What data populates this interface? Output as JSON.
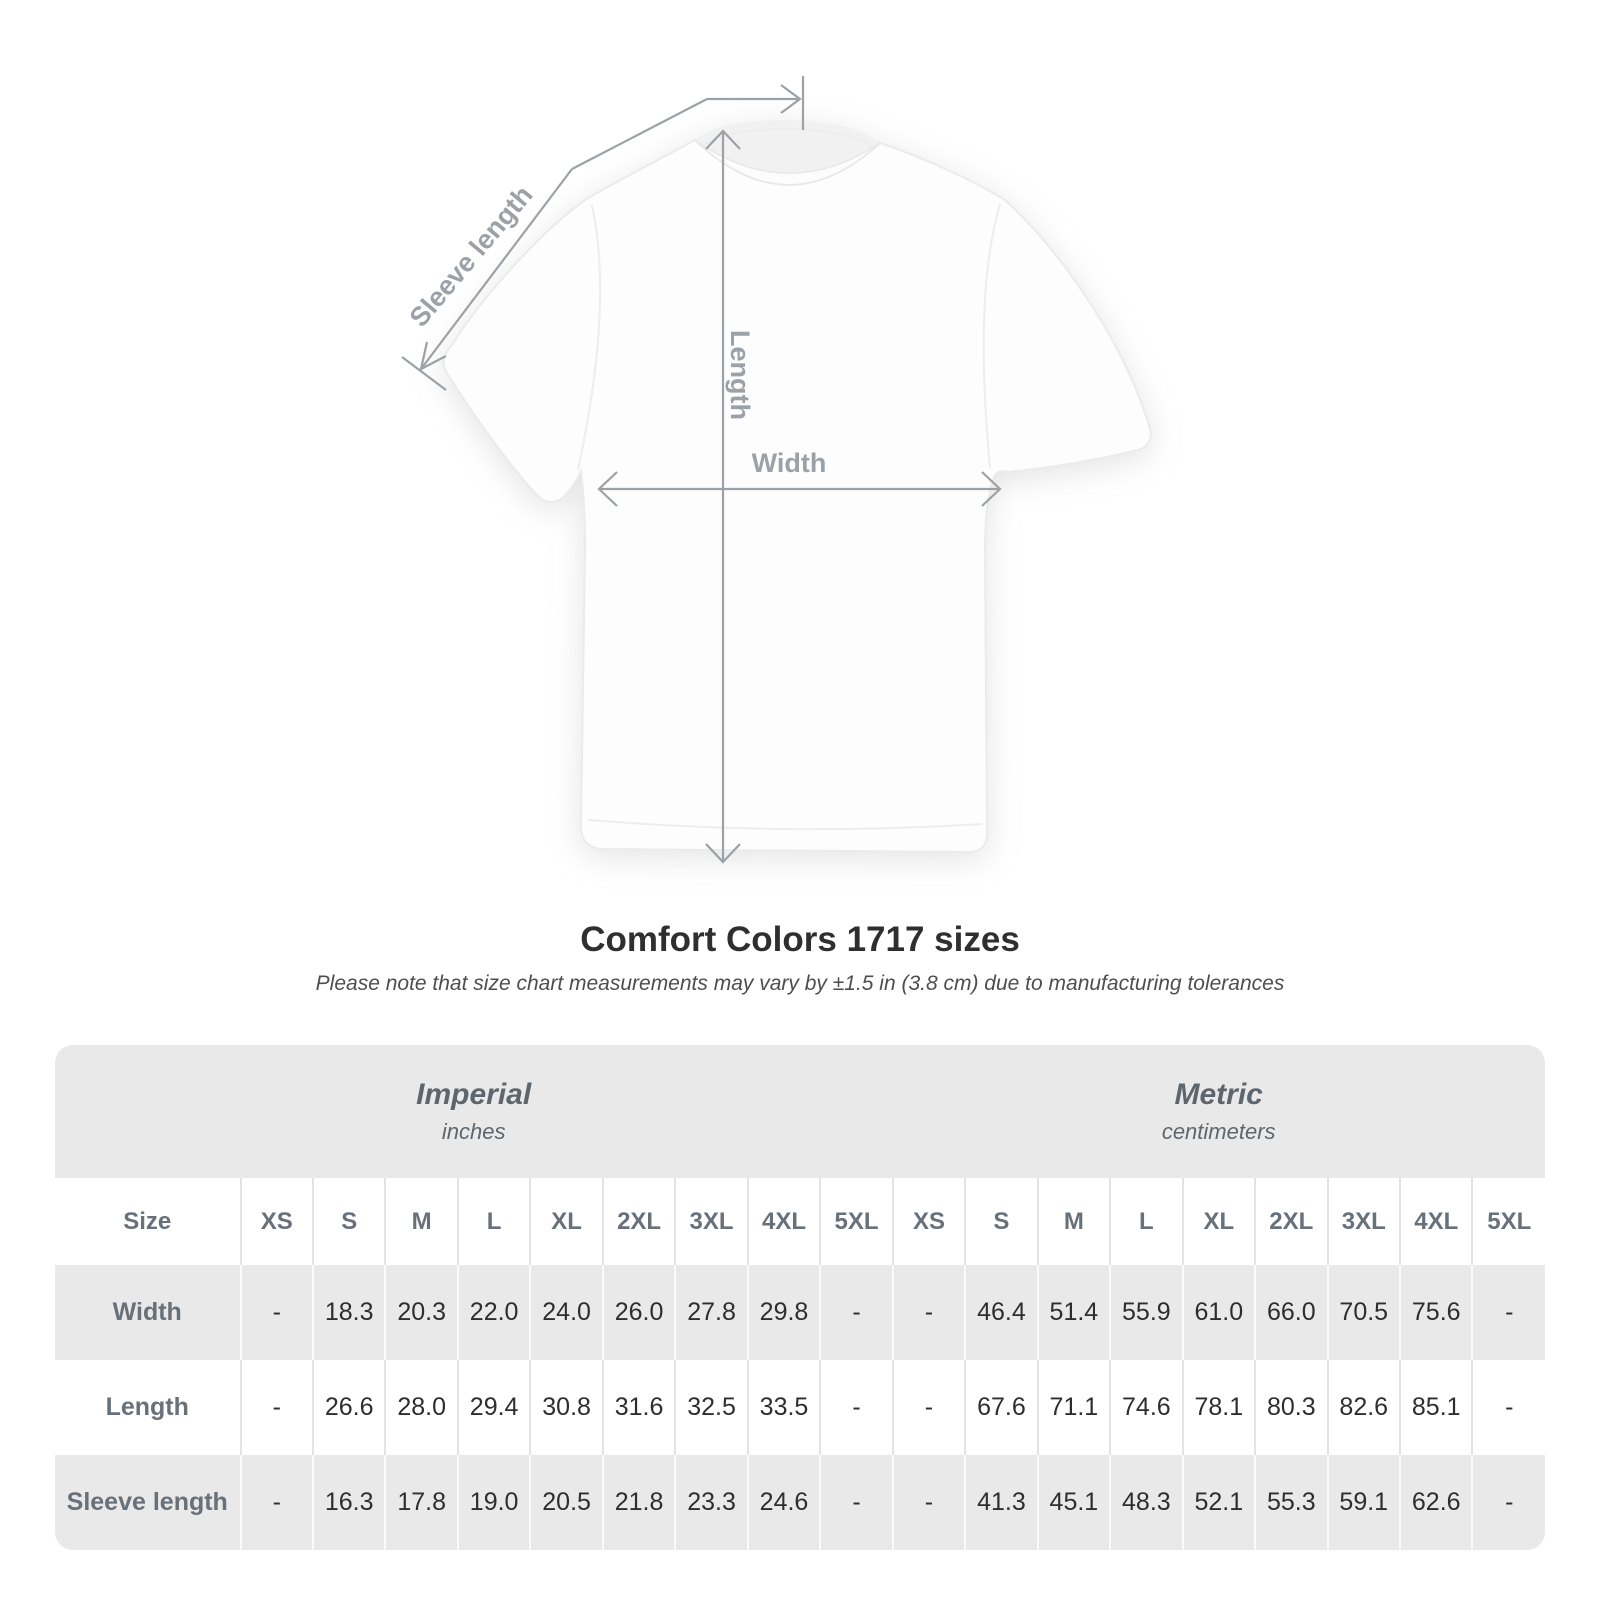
{
  "diagram": {
    "sleeve_label": "Sleeve length",
    "length_label": "Length",
    "width_label": "Width"
  },
  "title": "Comfort Colors 1717 sizes",
  "subtitle": "Please note that size chart measurements may vary by ±1.5 in (3.8 cm) due to manufacturing tolerances",
  "table": {
    "size_header": "Size",
    "unit_groups": [
      {
        "name": "Imperial",
        "unit": "inches"
      },
      {
        "name": "Metric",
        "unit": "centimeters"
      }
    ],
    "sizes": [
      "XS",
      "S",
      "M",
      "L",
      "XL",
      "2XL",
      "3XL",
      "4XL",
      "5XL"
    ],
    "rows": [
      {
        "label": "Width",
        "imperial": [
          "-",
          "18.3",
          "20.3",
          "22.0",
          "24.0",
          "26.0",
          "27.8",
          "29.8",
          "-"
        ],
        "metric": [
          "-",
          "46.4",
          "51.4",
          "55.9",
          "61.0",
          "66.0",
          "70.5",
          "75.6",
          "-"
        ]
      },
      {
        "label": "Length",
        "imperial": [
          "-",
          "26.6",
          "28.0",
          "29.4",
          "30.8",
          "31.6",
          "32.5",
          "33.5",
          "-"
        ],
        "metric": [
          "-",
          "67.6",
          "71.1",
          "74.6",
          "78.1",
          "80.3",
          "82.6",
          "85.1",
          "-"
        ]
      },
      {
        "label": "Sleeve length",
        "imperial": [
          "-",
          "16.3",
          "17.8",
          "19.0",
          "20.5",
          "21.8",
          "23.3",
          "24.6",
          "-"
        ],
        "metric": [
          "-",
          "41.3",
          "45.1",
          "48.3",
          "52.1",
          "55.3",
          "59.1",
          "62.6",
          "-"
        ]
      }
    ]
  },
  "colors": {
    "dim_line": "#9ba1a6",
    "band_gray": "#e9e9e9",
    "header_text": "#68707a",
    "value_text": "#2e2e2e",
    "title_text": "#2f2f2f",
    "subtitle_text": "#4e4e4e"
  }
}
